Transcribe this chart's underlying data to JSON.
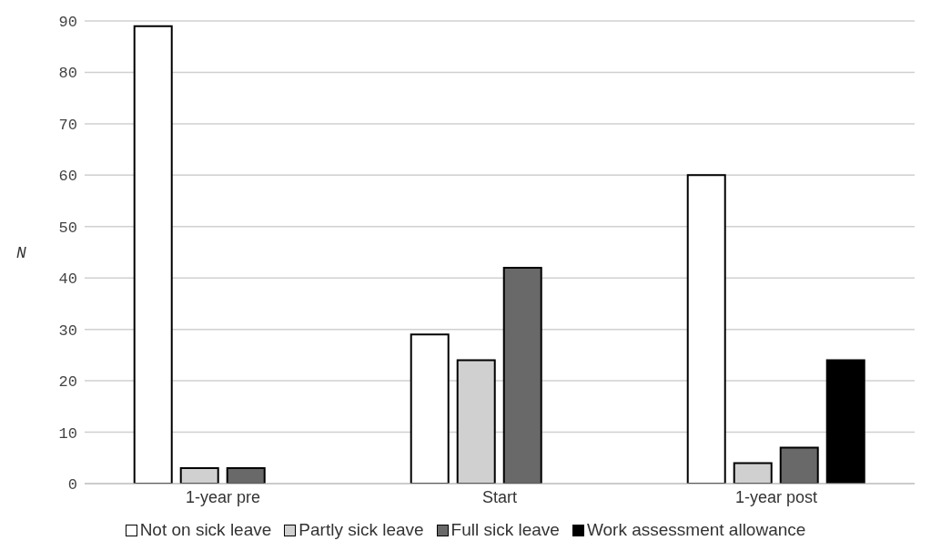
{
  "chart_data": {
    "type": "bar",
    "ylabel": "N",
    "categories": [
      "1-year pre",
      "Start",
      "1-year post"
    ],
    "series": [
      {
        "name": "Not on sick leave",
        "color": "#ffffff",
        "values": [
          89,
          29,
          60
        ]
      },
      {
        "name": "Partly sick leave",
        "color": "#d0d0d0",
        "values": [
          3,
          24,
          4
        ]
      },
      {
        "name": "Full sick leave",
        "color": "#696969",
        "values": [
          3,
          42,
          7
        ]
      },
      {
        "name": "Work assessment allowance",
        "color": "#000000",
        "values": [
          null,
          null,
          24
        ]
      }
    ],
    "ylim": [
      0,
      90
    ],
    "yticks": [
      0,
      10,
      20,
      30,
      40,
      50,
      60,
      70,
      80,
      90
    ],
    "grid": "y",
    "legend": "bottom"
  }
}
